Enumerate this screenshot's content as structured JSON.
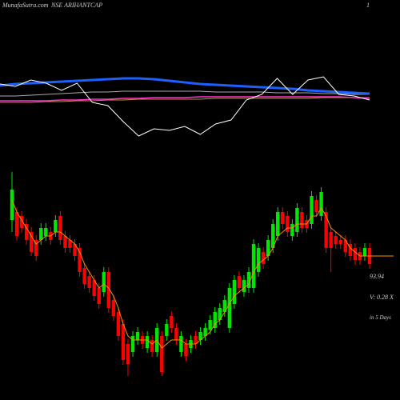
{
  "chart_data": [
    {
      "type": "line",
      "ylim": [
        0,
        90
      ],
      "series": [
        {
          "color": "#aaaaaa",
          "width": 1,
          "values": [
            55,
            55,
            56,
            57,
            58,
            59,
            60,
            60,
            61,
            61,
            61,
            61,
            61,
            61,
            60,
            60,
            60,
            60,
            59,
            59,
            59,
            58,
            58,
            57,
            57
          ]
        },
        {
          "color": "#cc8844",
          "width": 1,
          "values": [
            47,
            47,
            47,
            48,
            48,
            49,
            49,
            50,
            50,
            51,
            51,
            51,
            51,
            51,
            52,
            52,
            52,
            52,
            52,
            52,
            52,
            53,
            53,
            53,
            53
          ]
        },
        {
          "color": "#ff33cc",
          "width": 1.5,
          "values": [
            49,
            49,
            49,
            49,
            50,
            50,
            51,
            51,
            52,
            52,
            53,
            53,
            53,
            54,
            54,
            54,
            54,
            54,
            54,
            54,
            54,
            54,
            54,
            53,
            52
          ]
        },
        {
          "color": "#1e5fff",
          "width": 3,
          "values": [
            68,
            70,
            71,
            72,
            73,
            74,
            75,
            76,
            77,
            77,
            76,
            74,
            72,
            70,
            69,
            68,
            67,
            66,
            65,
            64,
            62,
            61,
            60,
            59,
            58
          ]
        },
        {
          "color": "#ffffff",
          "width": 1,
          "values": [
            70,
            67,
            75,
            71,
            62,
            71,
            47,
            43,
            23,
            5,
            14,
            12,
            17,
            7,
            20,
            25,
            50,
            57,
            77,
            57,
            75,
            79,
            57,
            55,
            50
          ]
        }
      ]
    },
    {
      "type": "candlestick",
      "watermark": "MunafaSutra.com",
      "title": "NSE ARIHANTCAP",
      "corner_label": "1",
      "price": 93.94,
      "volume_label": "V: 0.28 X",
      "period_label": "in 5 Days",
      "ylim": [
        64,
        116
      ],
      "up_color": "#00e600",
      "down_color": "#ff0000",
      "open": [
        103,
        105,
        104,
        102,
        100,
        98,
        98,
        99,
        100,
        100,
        104,
        99,
        98,
        97,
        96,
        91,
        89,
        88,
        86,
        85,
        90,
        83,
        80,
        77,
        72,
        70,
        73,
        74,
        71,
        73,
        70,
        74,
        74,
        79,
        76,
        70,
        72,
        71,
        74,
        73,
        74,
        75.6,
        76,
        78,
        80,
        76,
        82,
        89,
        85,
        86,
        86,
        90,
        95,
        94,
        96,
        99,
        105,
        104,
        99,
        100,
        105,
        103,
        102,
        108,
        104,
        105,
        100,
        99,
        98,
        98,
        97,
        96,
        95,
        94,
        96
      ],
      "high": [
        115,
        106.2,
        105.2,
        103.2,
        101.2,
        99.2,
        102.2,
        102.2,
        101.2,
        104.2,
        105.2,
        100.2,
        99.2,
        98.2,
        97.2,
        92.2,
        90.2,
        89.2,
        87.2,
        91.2,
        91.2,
        84.2,
        81.2,
        78.2,
        73.2,
        75.2,
        76.2,
        75.2,
        75.2,
        74.2,
        77.2,
        75.2,
        78.2,
        80.2,
        77.2,
        75.2,
        73.2,
        74.2,
        75.2,
        76.2,
        77.2,
        79.2,
        81.2,
        82.2,
        84.2,
        87.2,
        89.2,
        90.2,
        89.2,
        91.2,
        98.2,
        97.2,
        96.2,
        99.2,
        103.2,
        106.2,
        106.2,
        105.2,
        103.2,
        107.2,
        106.2,
        104.2,
        110.2,
        109.2,
        111.2,
        106.2,
        101.2,
        100.2,
        99.2,
        99.2,
        98.2,
        97.2,
        96.2,
        97.2,
        97.2
      ],
      "low": [
        100,
        97.8,
        99.8,
        96.8,
        94,
        92.8,
        96.8,
        97.8,
        96.8,
        98.8,
        96.8,
        94.8,
        94.8,
        92.8,
        88.8,
        85.8,
        84.8,
        82.8,
        80.8,
        83.8,
        79.8,
        77.8,
        72.8,
        66.8,
        64,
        68.8,
        71.8,
        70.8,
        69.8,
        68.8,
        68.8,
        64,
        72.8,
        74.8,
        71.8,
        68.8,
        67.8,
        69.8,
        70.8,
        71.8,
        72.8,
        74.4,
        74.8,
        76.8,
        78.8,
        74.8,
        80.8,
        84.8,
        83.8,
        84.8,
        84.8,
        88.8,
        90.8,
        92.8,
        94.8,
        97.8,
        100.8,
        98.8,
        97.8,
        98.8,
        99.8,
        99.8,
        100.8,
        103.8,
        102.8,
        94.8,
        90,
        95.8,
        95.8,
        93.8,
        92.8,
        91.8,
        91.8,
        92.8,
        90.8
      ],
      "close": [
        110.6,
        99,
        101,
        98,
        95,
        94,
        101,
        101,
        98,
        103,
        98,
        96,
        96,
        94,
        90,
        87,
        86,
        84,
        82,
        90,
        81,
        79,
        74,
        68,
        67,
        74,
        75,
        72,
        74,
        70,
        76,
        65,
        77,
        76,
        73,
        74,
        69,
        73,
        72,
        75,
        76,
        78,
        80,
        81,
        83,
        86,
        88,
        86,
        88,
        90,
        97,
        96,
        92,
        98,
        102,
        105,
        102,
        100,
        102,
        106,
        101,
        101,
        109,
        105,
        110,
        96,
        96,
        97,
        97,
        95,
        94,
        93,
        93,
        96,
        92
      ],
      "ma": {
        "color": "#ff8c00",
        "values": [
          108,
          105,
          103,
          101,
          99,
          97,
          98,
          99,
          99,
          100,
          100,
          99,
          98,
          97,
          95,
          92,
          90,
          88,
          86,
          87,
          86,
          84,
          81,
          77,
          74,
          73,
          73,
          73,
          73,
          72,
          73,
          71,
          72,
          73,
          73,
          73,
          72,
          72,
          72,
          73,
          74,
          75,
          77,
          78,
          80,
          82,
          84,
          85,
          86,
          87,
          90,
          92,
          93,
          94,
          96,
          99,
          100,
          101,
          101,
          102,
          102,
          102,
          104,
          104,
          106,
          104,
          101,
          100,
          99,
          98,
          96,
          95,
          94,
          94,
          94
        ]
      }
    }
  ]
}
